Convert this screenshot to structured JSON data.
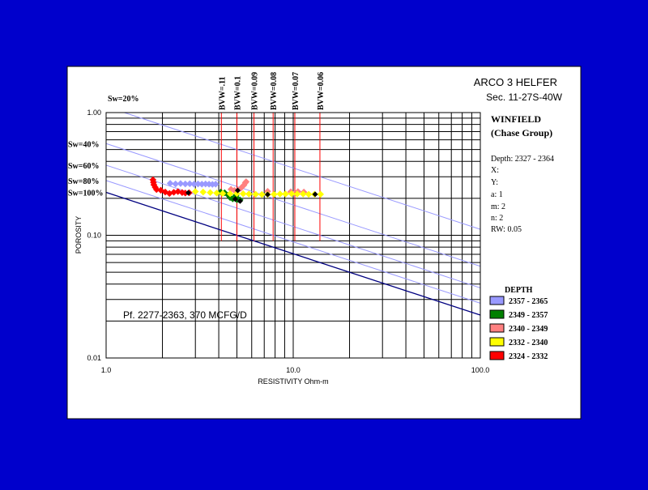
{
  "chart_data": {
    "type": "scatter",
    "title": "ARCO  3  HELFER",
    "subtitle": "Sec. 11-27S-40W",
    "xlabel": "RESISTIVITY Ohm-m",
    "ylabel": "POROSITY",
    "xscale": "log",
    "yscale": "log",
    "xlim": [
      1,
      100
    ],
    "ylim": [
      0.01,
      1
    ],
    "x_ticks": [
      {
        "value": 1,
        "label": "1.0"
      },
      {
        "value": 10,
        "label": "10.0"
      },
      {
        "value": 100,
        "label": "100.0"
      }
    ],
    "y_ticks": [
      {
        "value": 1,
        "label": "1.00"
      },
      {
        "value": 0.1,
        "label": "0.10"
      },
      {
        "value": 0.01,
        "label": "0.01"
      }
    ],
    "grid": true,
    "bvw_lines": [
      {
        "label": "BVW=.11",
        "resistivity": 4.13
      },
      {
        "label": "BVW=0.1",
        "resistivity": 5.0
      },
      {
        "label": "BVW=0.09",
        "resistivity": 6.17
      },
      {
        "label": "BVW=0.08",
        "resistivity": 7.81
      },
      {
        "label": "BVW=0.07",
        "resistivity": 10.2
      },
      {
        "label": "BVW=0.06",
        "resistivity": 13.89
      }
    ],
    "sw_lines": [
      {
        "label": "Sw=20%",
        "sw": 0.2,
        "color": "#9999FF"
      },
      {
        "label": "Sw=40%",
        "sw": 0.4,
        "color": "#9999FF"
      },
      {
        "label": "Sw=60%",
        "sw": 0.6,
        "color": "#9999FF"
      },
      {
        "label": "Sw=80%",
        "sw": 0.8,
        "color": "#9999FF"
      },
      {
        "label": "Sw=100%",
        "sw": 1.0,
        "color": "#000080"
      }
    ],
    "params": {
      "formation": "WINFIELD",
      "group": "(Chase Group)",
      "depth": "Depth: 2327 - 2364",
      "x": "X:",
      "y": "Y:",
      "a": "a: 1",
      "m": "m: 2",
      "n": "n: 2",
      "rw": "RW: 0.05"
    },
    "annotation": "Pf. 2277-2363, 370 MCFG/D",
    "legend_title": "DEPTH",
    "legend_position": "right",
    "series": [
      {
        "name": "2357 - 2365",
        "color": "#9999FF",
        "points": [
          [
            2.2,
            0.265
          ],
          [
            2.35,
            0.262
          ],
          [
            2.5,
            0.264
          ],
          [
            2.65,
            0.262
          ],
          [
            2.8,
            0.263
          ],
          [
            2.95,
            0.261
          ],
          [
            3.1,
            0.262
          ],
          [
            3.25,
            0.261
          ],
          [
            3.4,
            0.262
          ],
          [
            3.55,
            0.261
          ],
          [
            3.7,
            0.26
          ],
          [
            3.85,
            0.261
          ]
        ]
      },
      {
        "name": "2349 - 2357",
        "color": "#008000",
        "points": [
          [
            4.1,
            0.225
          ],
          [
            4.3,
            0.222
          ],
          [
            4.5,
            0.212
          ],
          [
            4.6,
            0.203
          ],
          [
            4.75,
            0.198
          ],
          [
            4.9,
            0.207
          ],
          [
            4.95,
            0.212
          ],
          [
            5.0,
            0.195
          ],
          [
            5.1,
            0.196
          ],
          [
            5.2,
            0.194
          ]
        ]
      },
      {
        "name": "2340 - 2349",
        "color": "#FF8080",
        "points": [
          [
            4.65,
            0.237
          ],
          [
            4.85,
            0.232
          ],
          [
            5.05,
            0.233
          ],
          [
            5.25,
            0.242
          ],
          [
            5.45,
            0.256
          ],
          [
            5.55,
            0.268
          ],
          [
            5.6,
            0.273
          ],
          [
            7.3,
            0.228
          ],
          [
            9.7,
            0.226
          ],
          [
            10.6,
            0.227
          ],
          [
            11.4,
            0.225
          ]
        ]
      },
      {
        "name": "2332 - 2340",
        "color": "#FFFF00",
        "points": [
          [
            3.0,
            0.227
          ],
          [
            3.3,
            0.225
          ],
          [
            3.6,
            0.223
          ],
          [
            3.9,
            0.221
          ],
          [
            4.2,
            0.219
          ],
          [
            4.6,
            0.218
          ],
          [
            5.0,
            0.219
          ],
          [
            5.4,
            0.218
          ],
          [
            5.8,
            0.217
          ],
          [
            6.3,
            0.216
          ],
          [
            6.8,
            0.215
          ],
          [
            7.3,
            0.215
          ],
          [
            7.9,
            0.216
          ],
          [
            8.5,
            0.217
          ],
          [
            9.1,
            0.217
          ],
          [
            9.8,
            0.218
          ],
          [
            10.5,
            0.217
          ],
          [
            11.3,
            0.217
          ],
          [
            12.1,
            0.216
          ],
          [
            13.0,
            0.216
          ],
          [
            14.0,
            0.216
          ]
        ]
      },
      {
        "name": "2324 - 2332",
        "color": "#FF0000",
        "points": [
          [
            1.78,
            0.283
          ],
          [
            1.79,
            0.27
          ],
          [
            1.8,
            0.258
          ],
          [
            1.83,
            0.246
          ],
          [
            1.86,
            0.236
          ],
          [
            1.96,
            0.233
          ],
          [
            2.07,
            0.225
          ],
          [
            2.18,
            0.219
          ],
          [
            2.3,
            0.224
          ],
          [
            2.42,
            0.227
          ],
          [
            2.55,
            0.223
          ],
          [
            2.65,
            0.221
          ],
          [
            2.78,
            0.222
          ]
        ]
      },
      {
        "name": "",
        "color": "#000000",
        "marker": "diamond",
        "points": [
          [
            2.75,
            0.222
          ],
          [
            4.9,
            0.197
          ],
          [
            5.2,
            0.19
          ],
          [
            5.05,
            0.232
          ],
          [
            7.3,
            0.215
          ],
          [
            13.1,
            0.216
          ]
        ]
      }
    ]
  }
}
